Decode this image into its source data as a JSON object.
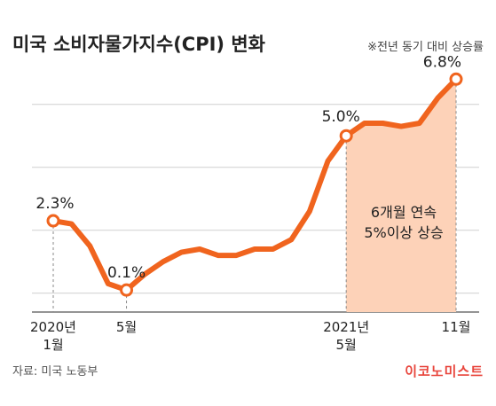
{
  "header": {
    "title": "미국 소비자물가지수(CPI) 변화",
    "note": "※전년 동기 대비 상승률"
  },
  "footer": {
    "source": "자료: 미국 노동부",
    "brand": "이코노미스트"
  },
  "highlight": {
    "line1": "6개월 연속",
    "line2": "5%이상 상승"
  },
  "colors": {
    "line": "#f0641e",
    "band": "#fdd2b8",
    "grid": "#cfcfcf",
    "brand": "#e8453c"
  },
  "chart_data": {
    "type": "line",
    "x": [
      "2020-01",
      "2020-02",
      "2020-03",
      "2020-04",
      "2020-05",
      "2020-06",
      "2020-07",
      "2020-08",
      "2020-09",
      "2020-10",
      "2020-11",
      "2020-12",
      "2021-01",
      "2021-02",
      "2021-03",
      "2021-04",
      "2021-05",
      "2021-06",
      "2021-07",
      "2021-08",
      "2021-09",
      "2021-10",
      "2021-11"
    ],
    "series": [
      {
        "values": [
          2.3,
          2.2,
          1.5,
          0.3,
          0.1,
          0.6,
          1.0,
          1.3,
          1.4,
          1.2,
          1.2,
          1.4,
          1.4,
          1.7,
          2.6,
          4.2,
          5.0,
          5.4,
          5.4,
          5.3,
          5.4,
          6.2,
          6.8
        ]
      }
    ],
    "ylim": [
      -0.6,
      7.4
    ],
    "grid": true,
    "x_tick_labels": [
      {
        "at": "2020-01",
        "lines": [
          "2020년",
          "1월"
        ]
      },
      {
        "at": "2020-05",
        "lines": [
          "5월"
        ]
      },
      {
        "at": "2021-05",
        "lines": [
          "2021년",
          "5월"
        ]
      },
      {
        "at": "2021-11",
        "lines": [
          "11월"
        ]
      }
    ],
    "data_labels": [
      {
        "at": "2020-01",
        "text": "2.3%"
      },
      {
        "at": "2020-05",
        "text": "0.1%"
      },
      {
        "at": "2021-05",
        "text": "5.0%"
      },
      {
        "at": "2021-11",
        "text": "6.8%"
      }
    ],
    "markers": [
      "2020-01",
      "2020-05",
      "2021-05",
      "2021-11"
    ],
    "highlight_range": [
      "2021-05",
      "2021-11"
    ]
  }
}
